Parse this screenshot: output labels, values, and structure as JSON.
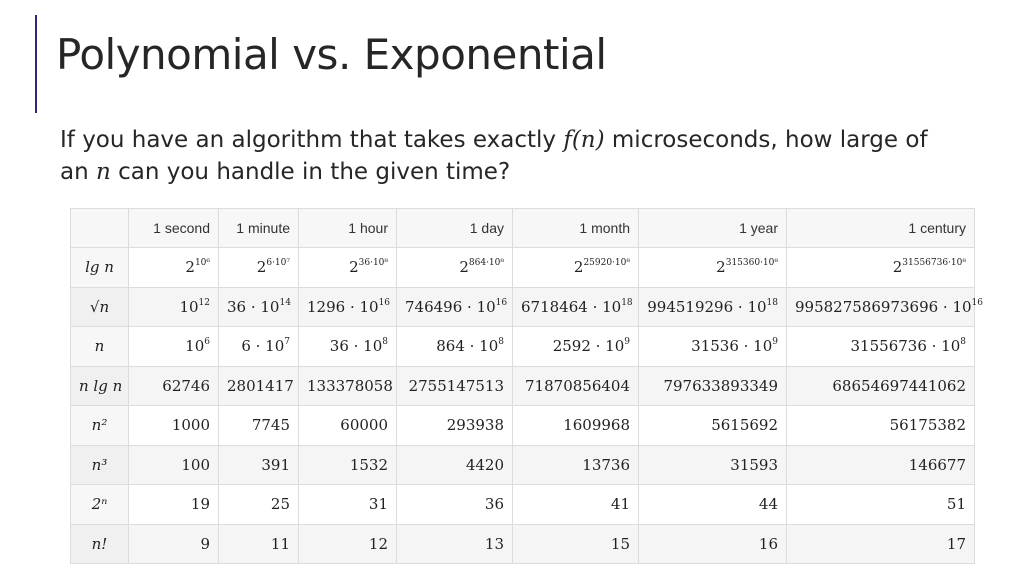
{
  "slide": {
    "title": "Polynomial vs. Exponential",
    "subtitle": {
      "before_fn": "If you have an algorithm that takes exactly ",
      "fn": "f(n)",
      "middle": " microseconds, how large of an ",
      "n": "n",
      "after": " can you handle in the given time?"
    }
  },
  "table": {
    "columns": [
      "",
      "1 second",
      "1 minute",
      "1 hour",
      "1 day",
      "1 month",
      "1 year",
      "1 century"
    ],
    "rows": [
      {
        "label": "lg n",
        "cells": [
          {
            "base": "2",
            "exp": "10⁶"
          },
          {
            "base": "2",
            "exp": "6·10⁷"
          },
          {
            "base": "2",
            "exp": "36·10⁸"
          },
          {
            "base": "2",
            "exp": "864·10⁸"
          },
          {
            "base": "2",
            "exp": "25920·10⁸"
          },
          {
            "base": "2",
            "exp": "315360·10⁸"
          },
          {
            "base": "2",
            "exp": "31556736·10⁸"
          }
        ]
      },
      {
        "label": "√n",
        "cells": [
          {
            "base": "10",
            "exp": "12"
          },
          {
            "base": "36 · 10",
            "exp": "14"
          },
          {
            "base": "1296 · 10",
            "exp": "16"
          },
          {
            "base": "746496 · 10",
            "exp": "16"
          },
          {
            "base": "6718464 · 10",
            "exp": "18"
          },
          {
            "base": "994519296 · 10",
            "exp": "18"
          },
          {
            "base": "995827586973696 · 10",
            "exp": "16"
          }
        ]
      },
      {
        "label": "n",
        "cells": [
          {
            "base": "10",
            "exp": "6"
          },
          {
            "base": "6 · 10",
            "exp": "7"
          },
          {
            "base": "36 · 10",
            "exp": "8"
          },
          {
            "base": "864 · 10",
            "exp": "8"
          },
          {
            "base": "2592 · 10",
            "exp": "9"
          },
          {
            "base": "31536 · 10",
            "exp": "9"
          },
          {
            "base": "31556736 · 10",
            "exp": "8"
          }
        ]
      },
      {
        "label": "n lg n",
        "cells": [
          {
            "base": "62746",
            "exp": ""
          },
          {
            "base": "2801417",
            "exp": ""
          },
          {
            "base": "133378058",
            "exp": ""
          },
          {
            "base": "2755147513",
            "exp": ""
          },
          {
            "base": "71870856404",
            "exp": ""
          },
          {
            "base": "797633893349",
            "exp": ""
          },
          {
            "base": "68654697441062",
            "exp": ""
          }
        ]
      },
      {
        "label": "n²",
        "cells": [
          {
            "base": "1000",
            "exp": ""
          },
          {
            "base": "7745",
            "exp": ""
          },
          {
            "base": "60000",
            "exp": ""
          },
          {
            "base": "293938",
            "exp": ""
          },
          {
            "base": "1609968",
            "exp": ""
          },
          {
            "base": "5615692",
            "exp": ""
          },
          {
            "base": "56175382",
            "exp": ""
          }
        ]
      },
      {
        "label": "n³",
        "cells": [
          {
            "base": "100",
            "exp": ""
          },
          {
            "base": "391",
            "exp": ""
          },
          {
            "base": "1532",
            "exp": ""
          },
          {
            "base": "4420",
            "exp": ""
          },
          {
            "base": "13736",
            "exp": ""
          },
          {
            "base": "31593",
            "exp": ""
          },
          {
            "base": "146677",
            "exp": ""
          }
        ]
      },
      {
        "label": "2ⁿ",
        "cells": [
          {
            "base": "19",
            "exp": ""
          },
          {
            "base": "25",
            "exp": ""
          },
          {
            "base": "31",
            "exp": ""
          },
          {
            "base": "36",
            "exp": ""
          },
          {
            "base": "41",
            "exp": ""
          },
          {
            "base": "44",
            "exp": ""
          },
          {
            "base": "51",
            "exp": ""
          }
        ]
      },
      {
        "label": "n!",
        "cells": [
          {
            "base": "9",
            "exp": ""
          },
          {
            "base": "11",
            "exp": ""
          },
          {
            "base": "12",
            "exp": ""
          },
          {
            "base": "13",
            "exp": ""
          },
          {
            "base": "15",
            "exp": ""
          },
          {
            "base": "16",
            "exp": ""
          },
          {
            "base": "17",
            "exp": ""
          }
        ]
      }
    ]
  },
  "colors": {
    "accent": "#2b2b6e",
    "grid": "#dcdcdc",
    "header_bg": "#f7f7f7"
  }
}
